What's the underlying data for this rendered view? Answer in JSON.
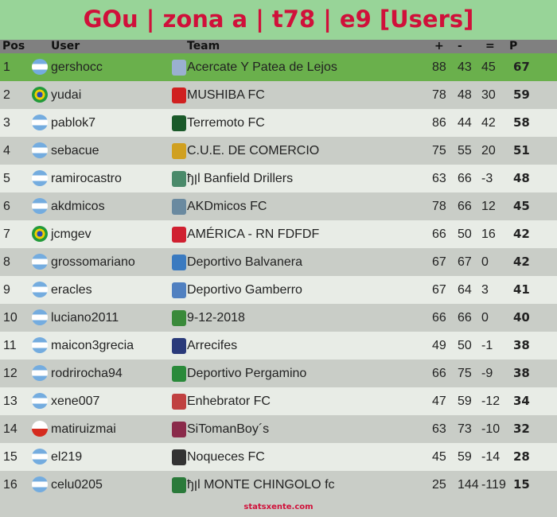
{
  "title": "GOu | zona a | t78 | e9 [Users]",
  "headers": {
    "pos": "Pos",
    "user": "User",
    "team": "Team",
    "plus": "+",
    "minus": "-",
    "diff": "=",
    "points": "P"
  },
  "colors": {
    "title": "#d0103a",
    "background": "#98d498",
    "header": "#808080",
    "leader_row": "#6ab04c",
    "row_light": "#e8ece6",
    "row_dark": "#c9cdc7"
  },
  "rows": [
    {
      "pos": "1",
      "flag": "argentina",
      "user": "gershocc",
      "team": "Acercate Y Patea de Lejos",
      "plus": "88",
      "minus": "43",
      "diff": "45",
      "points": "67",
      "logo": "#9ab0d0"
    },
    {
      "pos": "2",
      "flag": "brazil",
      "user": "yudai",
      "team": "MUSHIBA FC",
      "plus": "78",
      "minus": "48",
      "diff": "30",
      "points": "59",
      "logo": "#d02020"
    },
    {
      "pos": "3",
      "flag": "argentina",
      "user": "pablok7",
      "team": "Terremoto FC",
      "plus": "86",
      "minus": "44",
      "diff": "42",
      "points": "58",
      "logo": "#1a5a2a"
    },
    {
      "pos": "4",
      "flag": "argentina",
      "user": "sebacue",
      "team": "C.U.E. DE COMERCIO",
      "plus": "75",
      "minus": "55",
      "diff": "20",
      "points": "51",
      "logo": "#d0a020"
    },
    {
      "pos": "5",
      "flag": "argentina",
      "user": "ramirocastro",
      "team": "ђןl Banfield Drillers",
      "plus": "63",
      "minus": "66",
      "diff": "-3",
      "points": "48",
      "logo": "#4a8a6a"
    },
    {
      "pos": "6",
      "flag": "argentina",
      "user": "akdmicos",
      "team": "AKDmicos FC",
      "plus": "78",
      "minus": "66",
      "diff": "12",
      "points": "45",
      "logo": "#6a8aa0"
    },
    {
      "pos": "7",
      "flag": "brazil",
      "user": "jcmgev",
      "team": "AMÉRICA - RN FDFDF",
      "plus": "66",
      "minus": "50",
      "diff": "16",
      "points": "42",
      "logo": "#d02030"
    },
    {
      "pos": "8",
      "flag": "argentina",
      "user": "grossomariano",
      "team": "Deportivo Balvanera",
      "plus": "67",
      "minus": "67",
      "diff": "0",
      "points": "42",
      "logo": "#3a7ac0"
    },
    {
      "pos": "9",
      "flag": "argentina",
      "user": "eracles",
      "team": "Deportivo Gamberro",
      "plus": "67",
      "minus": "64",
      "diff": "3",
      "points": "41",
      "logo": "#5080c0"
    },
    {
      "pos": "10",
      "flag": "argentina",
      "user": "luciano2011",
      "team": "9-12-2018",
      "plus": "66",
      "minus": "66",
      "diff": "0",
      "points": "40",
      "logo": "#3a8a3a"
    },
    {
      "pos": "11",
      "flag": "argentina",
      "user": "maicon3grecia",
      "team": "Arrecifes",
      "plus": "49",
      "minus": "50",
      "diff": "-1",
      "points": "38",
      "logo": "#2a3a7a"
    },
    {
      "pos": "12",
      "flag": "argentina",
      "user": "rodrirocha94",
      "team": "Deportivo Pergamino",
      "plus": "66",
      "minus": "75",
      "diff": "-9",
      "points": "38",
      "logo": "#2a8a3a"
    },
    {
      "pos": "13",
      "flag": "argentina",
      "user": "xene007",
      "team": "Enhebrator FC",
      "plus": "47",
      "minus": "59",
      "diff": "-12",
      "points": "34",
      "logo": "#c04040"
    },
    {
      "pos": "14",
      "flag": "chile",
      "user": "matiruizmai",
      "team": "SiTomanBoy´s",
      "plus": "63",
      "minus": "73",
      "diff": "-10",
      "points": "32",
      "logo": "#8a2a4a"
    },
    {
      "pos": "15",
      "flag": "argentina",
      "user": "el219",
      "team": "Noqueces FC",
      "plus": "45",
      "minus": "59",
      "diff": "-14",
      "points": "28",
      "logo": "#333333"
    },
    {
      "pos": "16",
      "flag": "argentina",
      "user": "celu0205",
      "team": "ђןl MONTE CHINGOLO fc",
      "plus": "25",
      "minus": "144",
      "diff": "-119",
      "points": "15",
      "logo": "#2a7a3a"
    }
  ],
  "footer": "statsxente.com"
}
